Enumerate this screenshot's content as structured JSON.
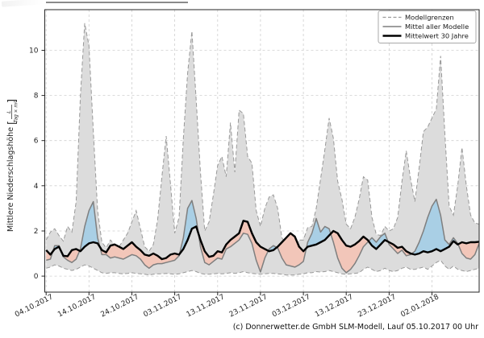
{
  "figure": {
    "caption": "(c) Donnerwetter.de GmbH SLM-Modell, Lauf 05.10.2017 00 Uhr"
  },
  "chart_data": {
    "type": "line",
    "title": "",
    "xlabel": "",
    "ylabel": "Mittlere Niederschlagshöhe",
    "ylabel_unit_numerator": "L",
    "ylabel_unit_denominator": "Tag × m²",
    "grid": true,
    "legend_position": "upper right",
    "xlim": [
      -0.32,
      101
    ],
    "ylim": [
      -0.71,
      11.8
    ],
    "y_ticks": [
      0,
      2,
      4,
      6,
      8,
      10
    ],
    "x_tick_positions": [
      0,
      10,
      20,
      30,
      40,
      50,
      60,
      70,
      80,
      90
    ],
    "x_tick_labels": [
      "04.10.2017",
      "14.10.2017",
      "24.10.2017",
      "03.11.2017",
      "13.11.2017",
      "23.11.2017",
      "03.12.2017",
      "13.12.2017",
      "23.12.2017",
      "02.01.2018"
    ],
    "legend": {
      "entries": [
        {
          "label": "Modellgrenzen",
          "style": "dashed_gray"
        },
        {
          "label": "Mittel aller Modelle",
          "style": "solid_gray"
        },
        {
          "label": "Mittelwert 30 Jahre",
          "style": "thick_black"
        }
      ]
    },
    "colors": {
      "band_fill": "#dcdcdc",
      "bound_line": "#999999",
      "model_mean_line": "#7f7f7f",
      "mean_30y_line": "#000000",
      "above_fill": "#a9cfe5",
      "below_fill": "#f2c6b9",
      "grid": "#cfcfcf",
      "spine": "#262626",
      "text": "#262626"
    },
    "series": [
      {
        "name": "Modellgrenze oben",
        "role": "upper_bound",
        "values": [
          1.6,
          1.95,
          2.1,
          1.8,
          1.55,
          2.2,
          1.95,
          3.3,
          8.0,
          11.2,
          10.2,
          6.4,
          2.9,
          1.5,
          1.25,
          1.6,
          1.4,
          1.3,
          1.6,
          1.9,
          2.4,
          2.9,
          2.1,
          1.3,
          1.1,
          1.4,
          2.5,
          4.4,
          6.2,
          4.1,
          1.9,
          2.6,
          6.1,
          9.0,
          10.85,
          7.8,
          4.6,
          2.0,
          2.4,
          3.6,
          4.9,
          5.3,
          4.4,
          6.8,
          4.6,
          7.35,
          7.2,
          5.3,
          5.0,
          2.9,
          2.2,
          3.0,
          3.5,
          3.6,
          3.0,
          1.7,
          1.4,
          1.35,
          1.3,
          1.6,
          1.6,
          2.15,
          2.2,
          3.0,
          4.3,
          5.6,
          7.0,
          6.1,
          4.2,
          3.4,
          2.3,
          2.1,
          2.6,
          3.4,
          4.4,
          4.25,
          2.6,
          1.85,
          1.8,
          2.2,
          2.0,
          2.1,
          2.6,
          4.2,
          5.55,
          4.3,
          3.3,
          4.8,
          6.4,
          6.6,
          7.0,
          7.4,
          9.75,
          6.3,
          3.1,
          2.7,
          4.0,
          5.7,
          4.0,
          2.7,
          2.35,
          2.3
        ]
      },
      {
        "name": "Modellgrenze unten",
        "role": "lower_bound",
        "values": [
          0.35,
          0.4,
          0.5,
          0.45,
          0.35,
          0.3,
          0.25,
          0.3,
          0.4,
          0.5,
          0.45,
          0.35,
          0.25,
          0.15,
          0.12,
          0.15,
          0.15,
          0.12,
          0.1,
          0.12,
          0.15,
          0.12,
          0.1,
          0.08,
          0.05,
          0.08,
          0.1,
          0.1,
          0.12,
          0.1,
          0.08,
          0.1,
          0.15,
          0.2,
          0.25,
          0.2,
          0.12,
          0.08,
          0.08,
          0.1,
          0.12,
          0.1,
          0.12,
          0.15,
          0.12,
          0.15,
          0.2,
          0.15,
          0.12,
          0.1,
          0.08,
          0.1,
          0.12,
          0.12,
          0.1,
          0.08,
          0.05,
          0.05,
          0.05,
          0.08,
          0.1,
          0.15,
          0.15,
          0.2,
          0.18,
          0.2,
          0.25,
          0.2,
          0.15,
          0.1,
          0.08,
          0.1,
          0.12,
          0.15,
          0.3,
          0.4,
          0.3,
          0.2,
          0.25,
          0.35,
          0.25,
          0.2,
          0.25,
          0.35,
          0.4,
          0.3,
          0.3,
          0.35,
          0.4,
          0.3,
          0.45,
          0.6,
          0.7,
          0.45,
          0.3,
          0.45,
          0.3,
          0.25,
          0.2,
          0.25,
          0.3,
          0.35
        ]
      },
      {
        "name": "Mittel aller Modelle",
        "role": "model_mean",
        "values": [
          0.7,
          0.75,
          1.35,
          1.35,
          0.85,
          0.7,
          0.6,
          0.75,
          1.2,
          2.2,
          2.9,
          3.3,
          1.7,
          0.95,
          0.95,
          0.8,
          0.85,
          0.8,
          0.75,
          0.85,
          0.95,
          0.9,
          0.75,
          0.5,
          0.35,
          0.5,
          0.55,
          0.55,
          0.6,
          0.65,
          0.7,
          0.9,
          1.7,
          3.0,
          3.35,
          2.55,
          1.3,
          0.6,
          0.5,
          0.65,
          0.8,
          0.75,
          1.2,
          1.3,
          1.45,
          1.6,
          1.9,
          1.85,
          1.45,
          0.7,
          0.18,
          0.8,
          1.2,
          1.35,
          1.25,
          0.8,
          0.5,
          0.45,
          0.4,
          0.5,
          0.65,
          1.5,
          1.9,
          2.55,
          1.95,
          2.2,
          2.1,
          1.5,
          0.8,
          0.35,
          0.15,
          0.3,
          0.55,
          0.9,
          1.3,
          1.5,
          1.7,
          1.5,
          1.75,
          1.9,
          1.4,
          1.2,
          1.0,
          1.15,
          0.9,
          0.95,
          1.1,
          1.5,
          2.0,
          2.6,
          3.1,
          3.4,
          2.7,
          1.6,
          1.4,
          1.7,
          1.45,
          1.0,
          0.8,
          0.75,
          0.95,
          1.45
        ]
      },
      {
        "name": "Mittelwert 30 Jahre",
        "role": "mean_30y",
        "values": [
          1.15,
          0.95,
          1.2,
          1.3,
          0.9,
          0.88,
          1.15,
          1.2,
          1.1,
          1.3,
          1.45,
          1.5,
          1.45,
          1.15,
          1.05,
          1.35,
          1.4,
          1.3,
          1.2,
          1.35,
          1.5,
          1.3,
          1.15,
          0.95,
          0.9,
          1.0,
          0.9,
          0.75,
          0.8,
          0.95,
          1.0,
          0.95,
          1.2,
          1.6,
          2.1,
          2.2,
          1.6,
          1.1,
          0.85,
          0.9,
          1.1,
          1.05,
          1.4,
          1.6,
          1.75,
          1.9,
          2.45,
          2.4,
          1.9,
          1.5,
          1.3,
          1.2,
          1.1,
          1.15,
          1.3,
          1.5,
          1.7,
          1.9,
          1.75,
          1.3,
          1.1,
          1.3,
          1.35,
          1.4,
          1.5,
          1.6,
          1.8,
          2.0,
          1.9,
          1.6,
          1.35,
          1.3,
          1.4,
          1.55,
          1.75,
          1.6,
          1.35,
          1.2,
          1.4,
          1.6,
          1.5,
          1.4,
          1.25,
          1.3,
          1.1,
          1.0,
          0.95,
          1.0,
          1.1,
          1.05,
          1.1,
          1.2,
          1.1,
          1.2,
          1.3,
          1.55,
          1.4,
          1.5,
          1.45,
          1.5,
          1.5,
          1.52
        ]
      }
    ]
  }
}
